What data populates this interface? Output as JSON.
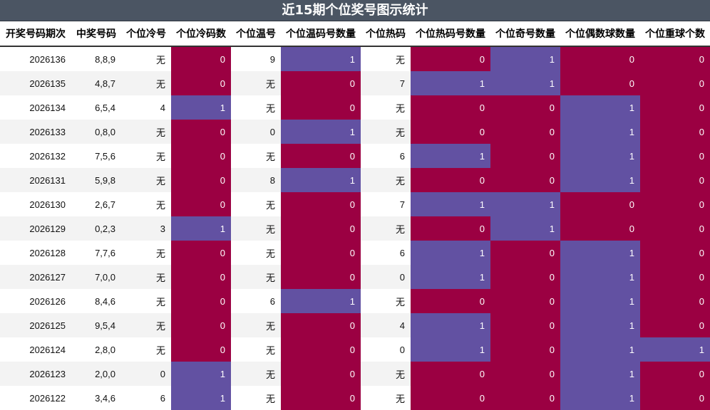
{
  "title": "近15期个位奖号图示统计",
  "colors": {
    "red": "#9b0042",
    "purple": "#6251a2",
    "header_bg": "#4b5563"
  },
  "columns": [
    "开奖号码期次",
    "中奖号码",
    "个位冷号",
    "个位冷码数",
    "个位温号",
    "个位温码号数量",
    "个位热码",
    "个位热码号数量",
    "个位奇号数量",
    "个位偶数球数量",
    "个位重球个数"
  ],
  "rows": [
    [
      "2026136",
      "8,8,9",
      "无",
      "0",
      "9",
      "1",
      "无",
      "0",
      "1",
      "0",
      "0"
    ],
    [
      "2026135",
      "4,8,7",
      "无",
      "0",
      "无",
      "0",
      "7",
      "1",
      "1",
      "0",
      "0"
    ],
    [
      "2026134",
      "6,5,4",
      "4",
      "1",
      "无",
      "0",
      "无",
      "0",
      "0",
      "1",
      "0"
    ],
    [
      "2026133",
      "0,8,0",
      "无",
      "0",
      "0",
      "1",
      "无",
      "0",
      "0",
      "1",
      "0"
    ],
    [
      "2026132",
      "7,5,6",
      "无",
      "0",
      "无",
      "0",
      "6",
      "1",
      "0",
      "1",
      "0"
    ],
    [
      "2026131",
      "5,9,8",
      "无",
      "0",
      "8",
      "1",
      "无",
      "0",
      "0",
      "1",
      "0"
    ],
    [
      "2026130",
      "2,6,7",
      "无",
      "0",
      "无",
      "0",
      "7",
      "1",
      "1",
      "0",
      "0"
    ],
    [
      "2026129",
      "0,2,3",
      "3",
      "1",
      "无",
      "0",
      "无",
      "0",
      "1",
      "0",
      "0"
    ],
    [
      "2026128",
      "7,7,6",
      "无",
      "0",
      "无",
      "0",
      "6",
      "1",
      "0",
      "1",
      "0"
    ],
    [
      "2026127",
      "7,0,0",
      "无",
      "0",
      "无",
      "0",
      "0",
      "1",
      "0",
      "1",
      "0"
    ],
    [
      "2026126",
      "8,4,6",
      "无",
      "0",
      "6",
      "1",
      "无",
      "0",
      "0",
      "1",
      "0"
    ],
    [
      "2026125",
      "9,5,4",
      "无",
      "0",
      "无",
      "0",
      "4",
      "1",
      "0",
      "1",
      "0"
    ],
    [
      "2026124",
      "2,8,0",
      "无",
      "0",
      "无",
      "0",
      "0",
      "1",
      "0",
      "1",
      "1"
    ],
    [
      "2026123",
      "2,0,0",
      "0",
      "1",
      "无",
      "0",
      "无",
      "0",
      "0",
      "1",
      "0"
    ],
    [
      "2026122",
      "3,4,6",
      "6",
      "1",
      "无",
      "0",
      "无",
      "0",
      "0",
      "1",
      "0"
    ]
  ]
}
